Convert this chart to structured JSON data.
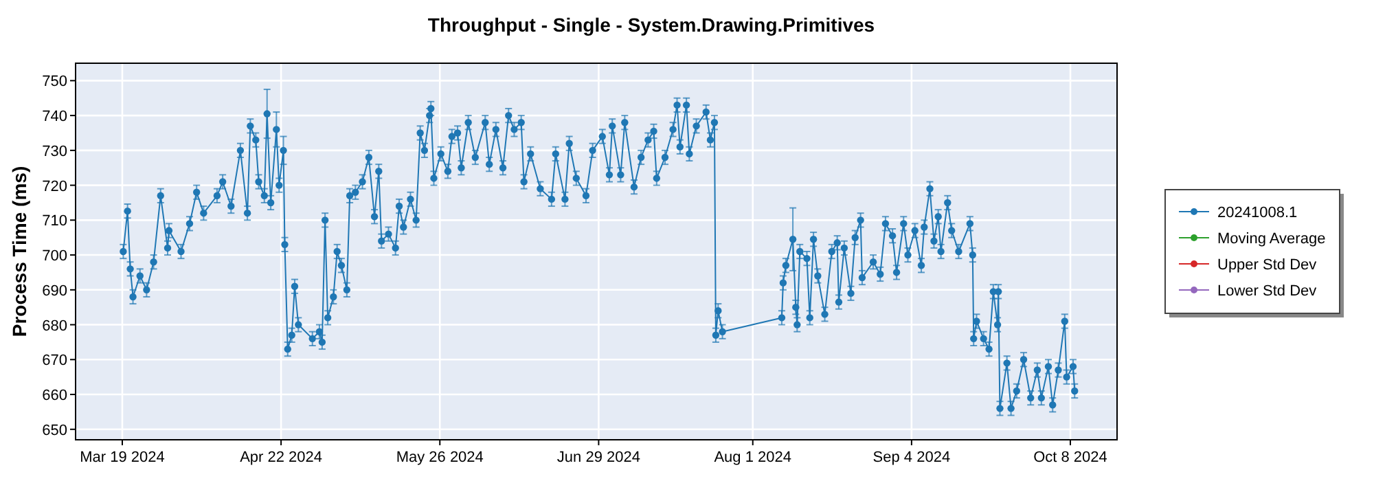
{
  "chart_data": {
    "type": "line",
    "title": "Throughput - Single - System.Drawing.Primitives",
    "ylabel": "Process Time (ms)",
    "xlim": [
      "2024-03-09",
      "2024-10-18"
    ],
    "xticks": [
      {
        "value": "2024-03-19",
        "label": "Mar 19 2024"
      },
      {
        "value": "2024-04-22",
        "label": "Apr 22 2024"
      },
      {
        "value": "2024-05-26",
        "label": "May 26 2024"
      },
      {
        "value": "2024-06-29",
        "label": "Jun 29 2024"
      },
      {
        "value": "2024-08-01",
        "label": "Aug 1 2024"
      },
      {
        "value": "2024-09-04",
        "label": "Sep 4 2024"
      },
      {
        "value": "2024-10-08",
        "label": "Oct 8 2024"
      }
    ],
    "ylim": [
      647,
      755
    ],
    "yticks": [
      650,
      660,
      670,
      680,
      690,
      700,
      710,
      720,
      730,
      740,
      750
    ],
    "grid": true,
    "legend": "right",
    "marker": "circle",
    "line_style": "solid",
    "x": [
      "2024-03-19T05:00",
      "2024-03-20T03:00",
      "2024-03-20T17:00",
      "2024-03-21T07:00",
      "2024-03-22T19:00",
      "2024-03-24T05:00",
      "2024-03-25T17:00",
      "2024-03-27T05:00",
      "2024-03-28T17:00",
      "2024-03-29T00:00",
      "2024-03-31T14:00",
      "2024-04-02T10:00",
      "2024-04-03T22:00",
      "2024-04-05T10:00",
      "2024-04-08T07:00",
      "2024-04-09T12:00",
      "2024-04-11T07:00",
      "2024-04-13T07:00",
      "2024-04-14T19:00",
      "2024-04-15T10:00",
      "2024-04-16T14:00",
      "2024-04-17T05:00",
      "2024-04-18T10:00",
      "2024-04-19T00:00",
      "2024-04-19T19:00",
      "2024-04-21T00:00",
      "2024-04-21T14:00",
      "2024-04-22T12:00",
      "2024-04-22T19:00",
      "2024-04-23T10:00",
      "2024-04-24T07:00",
      "2024-04-24T22:00",
      "2024-04-25T17:00",
      "2024-04-28T17:00",
      "2024-04-30T05:00",
      "2024-04-30T19:00",
      "2024-05-01T10:00",
      "2024-05-02T00:00",
      "2024-05-03T05:00",
      "2024-05-04T00:00",
      "2024-05-04T22:00",
      "2024-05-06T02:00",
      "2024-05-06T17:00",
      "2024-05-07T22:00",
      "2024-05-09T10:00",
      "2024-05-10T19:00",
      "2024-05-12T00:00",
      "2024-05-12T22:00",
      "2024-05-13T12:00",
      "2024-05-15T00:00",
      "2024-05-16T12:00",
      "2024-05-17T07:00",
      "2024-05-18T05:00",
      "2024-05-19T17:00",
      "2024-05-20T22:00",
      "2024-05-21T19:00",
      "2024-05-22T17:00",
      "2024-05-23T19:00",
      "2024-05-24T02:00",
      "2024-05-24T17:00",
      "2024-05-26T05:00",
      "2024-05-27T17:00",
      "2024-05-28T14:00",
      "2024-05-29T19:00",
      "2024-05-30T14:00",
      "2024-06-01T02:00",
      "2024-06-02T14:00",
      "2024-06-04T17:00",
      "2024-06-05T14:00",
      "2024-06-07T00:00",
      "2024-06-08T12:00",
      "2024-06-09T17:00",
      "2024-06-10T22:00",
      "2024-06-12T10:00",
      "2024-06-13T00:00",
      "2024-06-14T10:00",
      "2024-06-16T12:00",
      "2024-06-18T22:00",
      "2024-06-19T19:00",
      "2024-06-21T19:00",
      "2024-06-22T17:00",
      "2024-06-24T05:00",
      "2024-06-26T07:00",
      "2024-06-27T17:00",
      "2024-06-29T19:00",
      "2024-07-01T07:00",
      "2024-07-01T22:00",
      "2024-07-03T17:00",
      "2024-07-04T14:00",
      "2024-07-06T14:00",
      "2024-07-08T02:00",
      "2024-07-09T14:00",
      "2024-07-10T19:00",
      "2024-07-11T10:00",
      "2024-07-13T05:00",
      "2024-07-14T22:00",
      "2024-07-15T19:00",
      "2024-07-16T10:00",
      "2024-07-17T19:00",
      "2024-07-18T10:00",
      "2024-07-19T22:00",
      "2024-07-22T00:00",
      "2024-07-22T22:00",
      "2024-07-23T19:00",
      "2024-07-24T02:00",
      "2024-07-24T14:00",
      "2024-07-25T12:00",
      "2024-08-07T05:00",
      "2024-08-07T12:00",
      "2024-08-08T02:00",
      "2024-08-09T14:00",
      "2024-08-10T05:00",
      "2024-08-10T12:00",
      "2024-08-11T02:00",
      "2024-08-12T14:00",
      "2024-08-13T05:00",
      "2024-08-14T00:00",
      "2024-08-14T22:00",
      "2024-08-16T10:00",
      "2024-08-17T22:00",
      "2024-08-19T02:00",
      "2024-08-19T10:00",
      "2024-08-20T14:00",
      "2024-08-22T00:00",
      "2024-08-22T22:00",
      "2024-08-24T02:00",
      "2024-08-24T10:00",
      "2024-08-26T19:00",
      "2024-08-28T07:00",
      "2024-08-29T10:00",
      "2024-08-30T22:00",
      "2024-08-31T19:00",
      "2024-09-02T07:00",
      "2024-09-03T05:00",
      "2024-09-04T17:00",
      "2024-09-06T02:00",
      "2024-09-06T17:00",
      "2024-09-07T22:00",
      "2024-09-08T19:00",
      "2024-09-09T17:00",
      "2024-09-10T07:00",
      "2024-09-11T17:00",
      "2024-09-12T14:00",
      "2024-09-14T02:00",
      "2024-09-16T12:00",
      "2024-09-17T02:00",
      "2024-09-17T07:00",
      "2024-09-17T22:00",
      "2024-09-19T10:00",
      "2024-09-20T14:00",
      "2024-09-21T12:00",
      "2024-09-22T10:00",
      "2024-09-22T14:00",
      "2024-09-22T22:00",
      "2024-09-24T10:00",
      "2024-09-25T07:00",
      "2024-09-26T12:00",
      "2024-09-28T00:00",
      "2024-09-29T12:00",
      "2024-09-30T22:00",
      "2024-10-01T19:00",
      "2024-10-03T07:00",
      "2024-10-04T05:00",
      "2024-10-05T10:00",
      "2024-10-06T19:00",
      "2024-10-07T05:00",
      "2024-10-08T14:00",
      "2024-10-08T22:00"
    ],
    "series": [
      {
        "name": "20241008.1",
        "color": "#1f77b4",
        "values": [
          701,
          712.6,
          696,
          688,
          694,
          690,
          698,
          717,
          702,
          707,
          701,
          709,
          718,
          712,
          717,
          721,
          714,
          730,
          712,
          737,
          733,
          721,
          717,
          740.5,
          715,
          736,
          720,
          730,
          703,
          673,
          677,
          691,
          680,
          676,
          678,
          675,
          710,
          682,
          688,
          701,
          697,
          690,
          717,
          718,
          721,
          728,
          711,
          724,
          704,
          706,
          702,
          714,
          708,
          716,
          710,
          735,
          730,
          740,
          742,
          722,
          729,
          724,
          734,
          735,
          725,
          738,
          728,
          738,
          726,
          736,
          725,
          740,
          736,
          738,
          721,
          729,
          719,
          716,
          729,
          716,
          732,
          722,
          717,
          730,
          734,
          723,
          737,
          723,
          738,
          719.5,
          728,
          733,
          735.5,
          722,
          728,
          736,
          743,
          731,
          743,
          729,
          737,
          741,
          733,
          738,
          677,
          684,
          678,
          682,
          692,
          697,
          704.5,
          685,
          680,
          701,
          699,
          682,
          704.5,
          694,
          683,
          701,
          703.5,
          686.5,
          702,
          689,
          705,
          710,
          693.5,
          698,
          694.5,
          709,
          705.5,
          695,
          709,
          700,
          707,
          697,
          708,
          719,
          704,
          711,
          701,
          715,
          707,
          701,
          709,
          700,
          676,
          681,
          676,
          673,
          689.5,
          680,
          689.5,
          656,
          669,
          656,
          661,
          670,
          659,
          667,
          659,
          668,
          657,
          667,
          681,
          665,
          668,
          661
        ],
        "errors": [
          2,
          2,
          2,
          2,
          2,
          2,
          2,
          2,
          2,
          2,
          2,
          2,
          2,
          2,
          2,
          2,
          2,
          2,
          2,
          2,
          2,
          2,
          2,
          7,
          2,
          5,
          2,
          4,
          2,
          2,
          2,
          2,
          2,
          2,
          2,
          2,
          2,
          2,
          2,
          2,
          2,
          2,
          2,
          2,
          2,
          2,
          2,
          2,
          2,
          2,
          2,
          2,
          2,
          2,
          2,
          2,
          2,
          2,
          2,
          2,
          2,
          2,
          2,
          2,
          2,
          2,
          2,
          2,
          2,
          2,
          2,
          2,
          2,
          2,
          2,
          2,
          2,
          2,
          2,
          2,
          2,
          2,
          2,
          2,
          2,
          2,
          2,
          2,
          2,
          2,
          2,
          2,
          2,
          2,
          2,
          2,
          2,
          2,
          2,
          2,
          2,
          2,
          2,
          2,
          2,
          2,
          2,
          2,
          2,
          2,
          9,
          2,
          2,
          2,
          2,
          2,
          2,
          2,
          2,
          2,
          2,
          2,
          2,
          2,
          2,
          2,
          2,
          2,
          2,
          2,
          2,
          2,
          2,
          2,
          2,
          2,
          2,
          2,
          2,
          2,
          2,
          2,
          2,
          2,
          2,
          2,
          2,
          2,
          2,
          2,
          2,
          2,
          2,
          2,
          2,
          2,
          2,
          2,
          2,
          2,
          2,
          2,
          2,
          2,
          2,
          2,
          2,
          2
        ]
      },
      {
        "name": "Moving Average",
        "color": "#2ca02c",
        "values": [
          null,
          null,
          null,
          null,
          null,
          null,
          null,
          null,
          null,
          null,
          null,
          null,
          null,
          null,
          null,
          null,
          null,
          null,
          null,
          null,
          null,
          null,
          null,
          null,
          null,
          null,
          null,
          null,
          null,
          null,
          null,
          null,
          null,
          null,
          null,
          null,
          null,
          null,
          null,
          null,
          null,
          null,
          null,
          null,
          null,
          null,
          null,
          null,
          null,
          null,
          null,
          null,
          null,
          null,
          null,
          null,
          null,
          null,
          null,
          null,
          null,
          null,
          null,
          null,
          null,
          null,
          null,
          null,
          null,
          null,
          null,
          null,
          null,
          null,
          null,
          null,
          null,
          null,
          null,
          null,
          null,
          null,
          null,
          null,
          null,
          null,
          null,
          null,
          null,
          null,
          null,
          null,
          null,
          null,
          null,
          null,
          null,
          null,
          null,
          null,
          null,
          null,
          null,
          null,
          null,
          null,
          null,
          null,
          null,
          null,
          null,
          null,
          null,
          null,
          null,
          null,
          null,
          null,
          null,
          null,
          null,
          null,
          null,
          null,
          null,
          null,
          null,
          null,
          null,
          null,
          null,
          null,
          null,
          null,
          null,
          null,
          null,
          null,
          null,
          null,
          null,
          null,
          null,
          null,
          null,
          null,
          null,
          null,
          null,
          null,
          null,
          null,
          null,
          null,
          null,
          null,
          null,
          null,
          null,
          null,
          null,
          null,
          null,
          null,
          null,
          null,
          null,
          null
        ]
      },
      {
        "name": "Upper Std Dev",
        "color": "#d62728",
        "values": [
          null,
          null,
          null,
          null,
          null,
          null,
          null,
          null,
          null,
          null,
          null,
          null,
          null,
          null,
          null,
          null,
          null,
          null,
          null,
          null,
          null,
          null,
          null,
          null,
          null,
          null,
          null,
          null,
          null,
          null,
          null,
          null,
          null,
          null,
          null,
          null,
          null,
          null,
          null,
          null,
          null,
          null,
          null,
          null,
          null,
          null,
          null,
          null,
          null,
          null,
          null,
          null,
          null,
          null,
          null,
          null,
          null,
          null,
          null,
          null,
          null,
          null,
          null,
          null,
          null,
          null,
          null,
          null,
          null,
          null,
          null,
          null,
          null,
          null,
          null,
          null,
          null,
          null,
          null,
          null,
          null,
          null,
          null,
          null,
          null,
          null,
          null,
          null,
          null,
          null,
          null,
          null,
          null,
          null,
          null,
          null,
          null,
          null,
          null,
          null,
          null,
          null,
          null,
          null,
          null,
          null,
          null,
          null,
          null,
          null,
          null,
          null,
          null,
          null,
          null,
          null,
          null,
          null,
          null,
          null,
          null,
          null,
          null,
          null,
          null,
          null,
          null,
          null,
          null,
          null,
          null,
          null,
          null,
          null,
          null,
          null,
          null,
          null,
          null,
          null,
          null,
          null,
          null,
          null,
          null,
          null,
          null,
          null,
          null,
          null,
          null,
          null,
          null,
          null,
          null,
          null,
          null,
          null,
          null,
          null,
          null,
          null,
          null,
          null,
          null,
          null,
          null,
          null
        ]
      },
      {
        "name": "Lower Std Dev",
        "color": "#9467bd",
        "values": [
          null,
          null,
          null,
          null,
          null,
          null,
          null,
          null,
          null,
          null,
          null,
          null,
          null,
          null,
          null,
          null,
          null,
          null,
          null,
          null,
          null,
          null,
          null,
          null,
          null,
          null,
          null,
          null,
          null,
          null,
          null,
          null,
          null,
          null,
          null,
          null,
          null,
          null,
          null,
          null,
          null,
          null,
          null,
          null,
          null,
          null,
          null,
          null,
          null,
          null,
          null,
          null,
          null,
          null,
          null,
          null,
          null,
          null,
          null,
          null,
          null,
          null,
          null,
          null,
          null,
          null,
          null,
          null,
          null,
          null,
          null,
          null,
          null,
          null,
          null,
          null,
          null,
          null,
          null,
          null,
          null,
          null,
          null,
          null,
          null,
          null,
          null,
          null,
          null,
          null,
          null,
          null,
          null,
          null,
          null,
          null,
          null,
          null,
          null,
          null,
          null,
          null,
          null,
          null,
          null,
          null,
          null,
          null,
          null,
          null,
          null,
          null,
          null,
          null,
          null,
          null,
          null,
          null,
          null,
          null,
          null,
          null,
          null,
          null,
          null,
          null,
          null,
          null,
          null,
          null,
          null,
          null,
          null,
          null,
          null,
          null,
          null,
          null,
          null,
          null,
          null,
          null,
          null,
          null,
          null,
          null,
          null,
          null,
          null,
          null,
          null,
          null,
          null,
          null,
          null,
          null,
          null,
          null,
          null,
          null,
          null,
          null,
          null,
          null,
          null,
          null,
          null,
          null
        ]
      }
    ]
  }
}
